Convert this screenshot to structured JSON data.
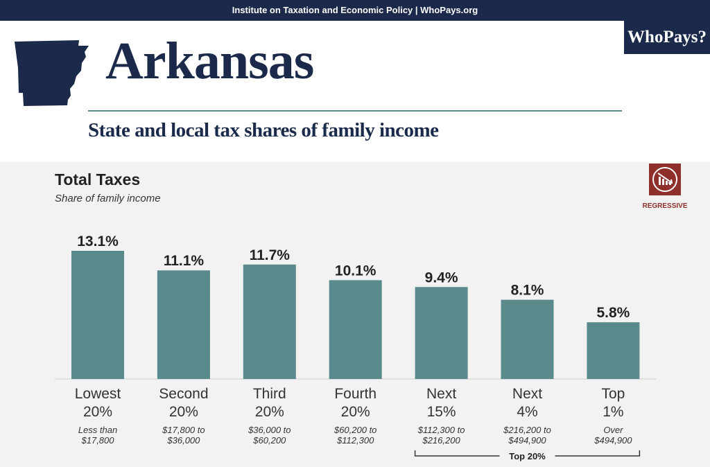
{
  "header": {
    "topbar": "Institute on Taxation and Economic Policy | WhoPays.org",
    "logo": "WhoPays?",
    "state": "Arkansas",
    "subtitle": "State and local tax shares of family income"
  },
  "badge": {
    "label": "REGRESSIVE",
    "icon": "regressive-chart-icon",
    "color": "#8f2f2c"
  },
  "colors": {
    "navy": "#1b2a4a",
    "bar": "#5b8a8c",
    "panel": "#f2f2f2"
  },
  "chart_data": {
    "type": "bar",
    "title": "Total Taxes",
    "subtitle": "Share of family income",
    "ylim": [
      0,
      14
    ],
    "grid": false,
    "categories": [
      {
        "line1": "Lowest",
        "line2": "20%",
        "range1": "Less than",
        "range2": "$17,800"
      },
      {
        "line1": "Second",
        "line2": "20%",
        "range1": "$17,800 to",
        "range2": "$36,000"
      },
      {
        "line1": "Third",
        "line2": "20%",
        "range1": "$36,000 to",
        "range2": "$60,200"
      },
      {
        "line1": "Fourth",
        "line2": "20%",
        "range1": "$60,200 to",
        "range2": "$112,300"
      },
      {
        "line1": "Next",
        "line2": "15%",
        "range1": "$112,300 to",
        "range2": "$216,200"
      },
      {
        "line1": "Next",
        "line2": "4%",
        "range1": "$216,200 to",
        "range2": "$494,900"
      },
      {
        "line1": "Top",
        "line2": "1%",
        "range1": "Over",
        "range2": "$494,900"
      }
    ],
    "values": [
      13.1,
      11.1,
      11.7,
      10.1,
      9.4,
      8.1,
      5.8
    ],
    "value_labels": [
      "13.1%",
      "11.1%",
      "11.7%",
      "10.1%",
      "9.4%",
      "8.1%",
      "5.8%"
    ],
    "group_bracket": {
      "label": "Top 20%",
      "from_index": 4,
      "to_index": 6
    }
  }
}
